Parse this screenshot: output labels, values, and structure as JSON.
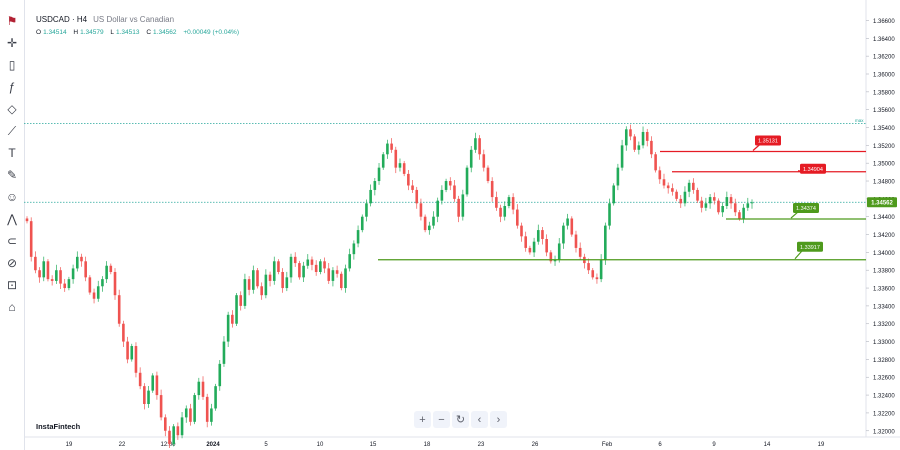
{
  "header": {
    "symbol": "USDCAD · H4",
    "description": "US Dollar vs Canadian",
    "ohlc": {
      "o_label": "O",
      "o": "1.34514",
      "h_label": "H",
      "h": "1.34579",
      "l_label": "L",
      "l": "1.34513",
      "c_label": "C",
      "c": "1.34562",
      "change": "+0.00049 (+0.04%)"
    }
  },
  "toolbar": [
    "flag-icon",
    "cursor-icon",
    "candles-icon",
    "fx-icon",
    "draw-path-icon",
    "measure-icon",
    "text-icon",
    "brush-icon",
    "emoji-icon",
    "pattern-icon",
    "magnet-icon",
    "eye-off-icon",
    "lock-icon",
    "trash-icon"
  ],
  "brand": "InstaFintech",
  "nav_buttons": [
    "+",
    "−",
    "↻",
    "‹",
    "›"
  ],
  "colors": {
    "up": "#26a69a",
    "up_candle": "#22ab5a",
    "down": "#ef5350",
    "resistance": "#e51b24",
    "support": "#4e9a1c",
    "price_label": "#4e9a1c",
    "dotted": "#26a69a"
  },
  "chart_data": {
    "type": "candlestick",
    "symbol": "USDCAD",
    "timeframe": "H4",
    "y_ticks": [
      "1.36600",
      "1.36400",
      "1.36200",
      "1.36000",
      "1.35800",
      "1.35600",
      "1.35400",
      "1.35200",
      "1.35000",
      "1.34800",
      "1.34600",
      "1.34400",
      "1.34200",
      "1.34000",
      "1.33800",
      "1.33600",
      "1.33400",
      "1.33200",
      "1.33000",
      "1.32800",
      "1.32600",
      "1.32400",
      "1.32200",
      "1.32000"
    ],
    "ylim": [
      1.3193,
      1.3674
    ],
    "x_ticks": [
      "19",
      "22",
      "12:00",
      "2024",
      "5",
      "10",
      "15",
      "18",
      "23",
      "26",
      "Feb",
      "6",
      "9",
      "14",
      "19"
    ],
    "current_price": "1.34562",
    "current_price_value": 1.34562,
    "dotted_high": 1.35445,
    "dotted_high_label": "max",
    "levels": [
      {
        "kind": "resistance",
        "label": "1.35131",
        "value": 1.35131
      },
      {
        "kind": "resistance",
        "label": "1.34904",
        "value": 1.34904
      },
      {
        "kind": "support",
        "label": "1.34374",
        "value": 1.34374
      },
      {
        "kind": "support",
        "label": "1.33917",
        "value": 1.33917
      }
    ],
    "path_values": [
      1.3435,
      1.3395,
      1.338,
      1.3372,
      1.339,
      1.337,
      1.3368,
      1.338,
      1.3365,
      1.336,
      1.337,
      1.3382,
      1.3395,
      1.339,
      1.3372,
      1.3355,
      1.3348,
      1.3362,
      1.337,
      1.3385,
      1.3378,
      1.3352,
      1.332,
      1.33,
      1.328,
      1.3295,
      1.3265,
      1.325,
      1.323,
      1.3245,
      1.3262,
      1.324,
      1.3215,
      1.32,
      1.3185,
      1.3205,
      1.3195,
      1.3215,
      1.3225,
      1.321,
      1.324,
      1.3255,
      1.3238,
      1.321,
      1.3225,
      1.325,
      1.3275,
      1.33,
      1.333,
      1.332,
      1.3352,
      1.334,
      1.337,
      1.3358,
      1.338,
      1.3362,
      1.3352,
      1.3375,
      1.3368,
      1.339,
      1.3378,
      1.336,
      1.3372,
      1.3395,
      1.3388,
      1.3372,
      1.3385,
      1.3392,
      1.3386,
      1.3378,
      1.339,
      1.3382,
      1.3368,
      1.338,
      1.3376,
      1.336,
      1.3382,
      1.3398,
      1.341,
      1.3425,
      1.344,
      1.3455,
      1.347,
      1.348,
      1.3495,
      1.351,
      1.3522,
      1.3515,
      1.3495,
      1.35,
      1.3488,
      1.3475,
      1.347,
      1.3455,
      1.344,
      1.3425,
      1.343,
      1.344,
      1.3458,
      1.347,
      1.348,
      1.3475,
      1.346,
      1.344,
      1.3465,
      1.3495,
      1.3515,
      1.3528,
      1.351,
      1.3495,
      1.348,
      1.3462,
      1.345,
      1.344,
      1.3452,
      1.3462,
      1.3448,
      1.343,
      1.3418,
      1.3405,
      1.34,
      1.3412,
      1.3425,
      1.3415,
      1.34,
      1.339,
      1.3392,
      1.341,
      1.343,
      1.3438,
      1.342,
      1.3405,
      1.3395,
      1.3388,
      1.338,
      1.3372,
      1.337,
      1.3392,
      1.343,
      1.3455,
      1.3475,
      1.3495,
      1.352,
      1.3538,
      1.353,
      1.3515,
      1.352,
      1.3535,
      1.3525,
      1.351,
      1.3492,
      1.3482,
      1.3475,
      1.3472,
      1.3468,
      1.346,
      1.3455,
      1.3468,
      1.3478,
      1.347,
      1.3458,
      1.345,
      1.3455,
      1.3462,
      1.3458,
      1.3445,
      1.3452,
      1.3462,
      1.3455,
      1.3445,
      1.3438,
      1.345,
      1.3455,
      1.3456
    ]
  }
}
